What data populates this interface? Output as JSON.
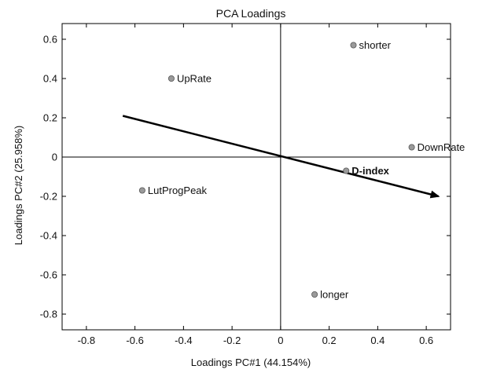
{
  "chart_data": {
    "type": "scatter",
    "title": "PCA Loadings",
    "xlabel": "Loadings PC#1 (44.154%)",
    "ylabel": "Loadings PC#2 (25.958%)",
    "xlim": [
      -0.9,
      0.7
    ],
    "ylim": [
      -0.88,
      0.68
    ],
    "xticks": [
      -0.8,
      -0.6,
      -0.4,
      -0.2,
      0,
      0.2,
      0.4,
      0.6
    ],
    "yticks": [
      -0.8,
      -0.6,
      -0.4,
      -0.2,
      0,
      0.2,
      0.4,
      0.6
    ],
    "xtick_labels": [
      "-0.8",
      "-0.6",
      "-0.4",
      "-0.2",
      "0",
      "0.2",
      "0.4",
      "0.6"
    ],
    "ytick_labels": [
      "-0.8",
      "-0.6",
      "-0.4",
      "-0.2",
      "0",
      "0.2",
      "0.4",
      "0.6"
    ],
    "grid": false,
    "zero_lines": true,
    "points": [
      {
        "label": "shorter",
        "x": 0.3,
        "y": 0.57,
        "bold": false
      },
      {
        "label": "UpRate",
        "x": -0.45,
        "y": 0.4,
        "bold": false
      },
      {
        "label": "DownRate",
        "x": 0.54,
        "y": 0.05,
        "bold": false
      },
      {
        "label": "D-index",
        "x": 0.27,
        "y": -0.07,
        "bold": true
      },
      {
        "label": "LutProgPeak",
        "x": -0.57,
        "y": -0.17,
        "bold": false
      },
      {
        "label": "longer",
        "x": 0.14,
        "y": -0.7,
        "bold": false
      }
    ],
    "arrow": {
      "from": [
        -0.65,
        0.21
      ],
      "to": [
        0.65,
        -0.2
      ]
    },
    "colors": {
      "point_fill": "#9a9a9a",
      "point_stroke": "#555555",
      "axis": "#000000",
      "arrow": "#000000"
    }
  }
}
